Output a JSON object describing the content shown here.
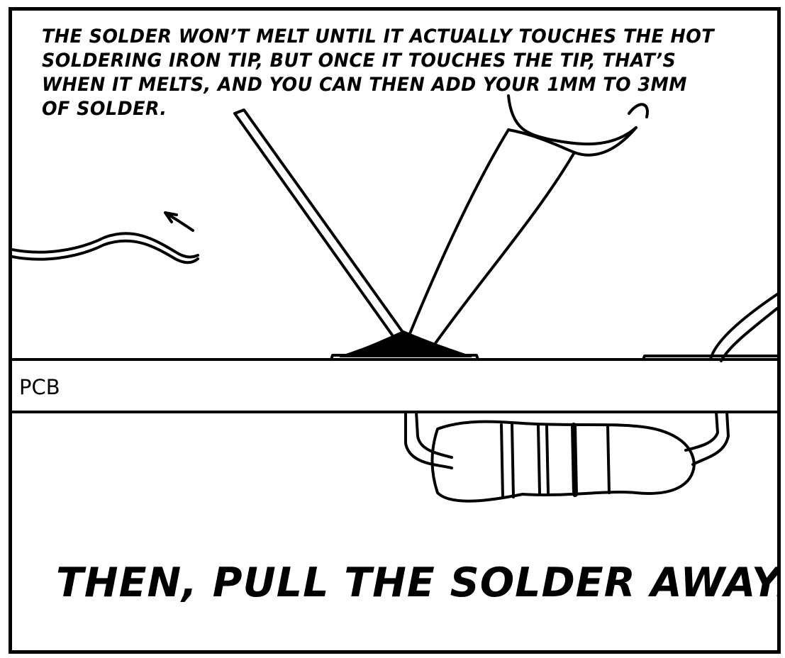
{
  "comic": {
    "caption": "THE SOLDER WON’T MELT UNTIL IT ACTUALLY TOUCHES THE HOT SOLDERING IRON TIP, BUT ONCE IT TOUCHES THE TIP, THAT’S WHEN IT MELTS, AND YOU CAN THEN ADD YOUR 1MM TO 3MM OF SOLDER.",
    "pcb_label": "PCB",
    "bottom_text": "THEN, PULL THE SOLDER AWAY."
  }
}
